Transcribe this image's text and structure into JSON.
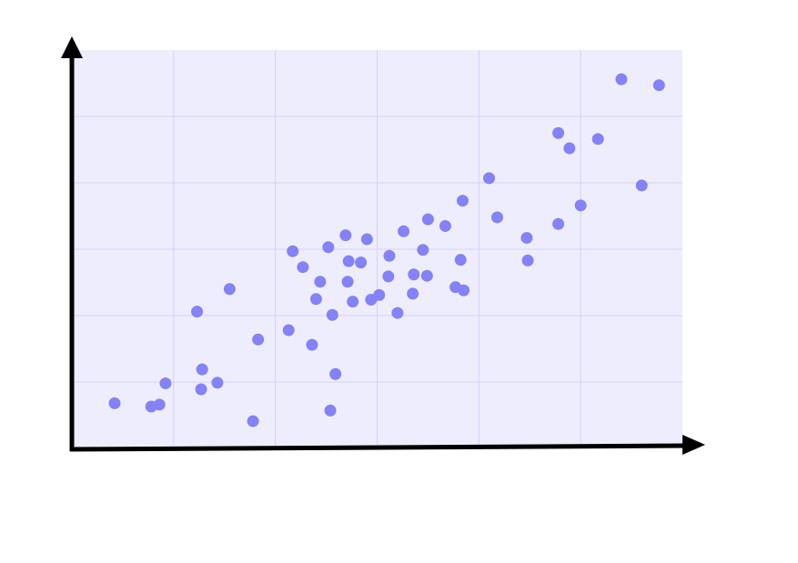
{
  "chart_data": {
    "type": "scatter",
    "title": "",
    "xlabel": "",
    "ylabel": "",
    "xlim": [
      0,
      6
    ],
    "ylim": [
      0,
      6
    ],
    "grid": true,
    "colors": {
      "plot_background": "#eeedfd",
      "grid": "#d4d2f6",
      "points": "#8582f4",
      "axes": "#000000"
    },
    "series": [
      {
        "points": [
          [
            0.42,
            0.68
          ],
          [
            0.78,
            0.63
          ],
          [
            0.86,
            0.66
          ],
          [
            0.92,
            0.98
          ],
          [
            1.23,
            2.06
          ],
          [
            1.28,
            1.19
          ],
          [
            1.27,
            0.89
          ],
          [
            1.43,
            0.99
          ],
          [
            1.55,
            2.4
          ],
          [
            1.78,
            0.41
          ],
          [
            1.83,
            1.64
          ],
          [
            2.13,
            1.78
          ],
          [
            2.17,
            2.97
          ],
          [
            2.27,
            2.73
          ],
          [
            2.36,
            1.56
          ],
          [
            2.4,
            2.25
          ],
          [
            2.44,
            2.51
          ],
          [
            2.52,
            3.03
          ],
          [
            2.54,
            0.57
          ],
          [
            2.56,
            2.01
          ],
          [
            2.59,
            1.12
          ],
          [
            2.69,
            3.21
          ],
          [
            2.71,
            2.51
          ],
          [
            2.72,
            2.82
          ],
          [
            2.76,
            2.21
          ],
          [
            2.84,
            2.8
          ],
          [
            2.9,
            3.15
          ],
          [
            2.94,
            2.24
          ],
          [
            3.02,
            2.31
          ],
          [
            3.12,
            2.9
          ],
          [
            3.11,
            2.59
          ],
          [
            3.2,
            2.04
          ],
          [
            3.26,
            3.27
          ],
          [
            3.35,
            2.33
          ],
          [
            3.36,
            2.62
          ],
          [
            3.45,
            2.99
          ],
          [
            3.49,
            2.6
          ],
          [
            3.5,
            3.45
          ],
          [
            3.67,
            3.35
          ],
          [
            3.77,
            2.43
          ],
          [
            3.82,
            2.84
          ],
          [
            3.84,
            3.73
          ],
          [
            3.85,
            2.38
          ],
          [
            4.1,
            4.07
          ],
          [
            4.18,
            3.48
          ],
          [
            4.47,
            3.17
          ],
          [
            4.48,
            2.83
          ],
          [
            4.78,
            3.38
          ],
          [
            4.78,
            4.75
          ],
          [
            4.89,
            4.52
          ],
          [
            5.0,
            3.66
          ],
          [
            5.17,
            4.66
          ],
          [
            5.4,
            5.56
          ],
          [
            5.6,
            3.96
          ],
          [
            5.77,
            5.47
          ]
        ]
      }
    ]
  }
}
